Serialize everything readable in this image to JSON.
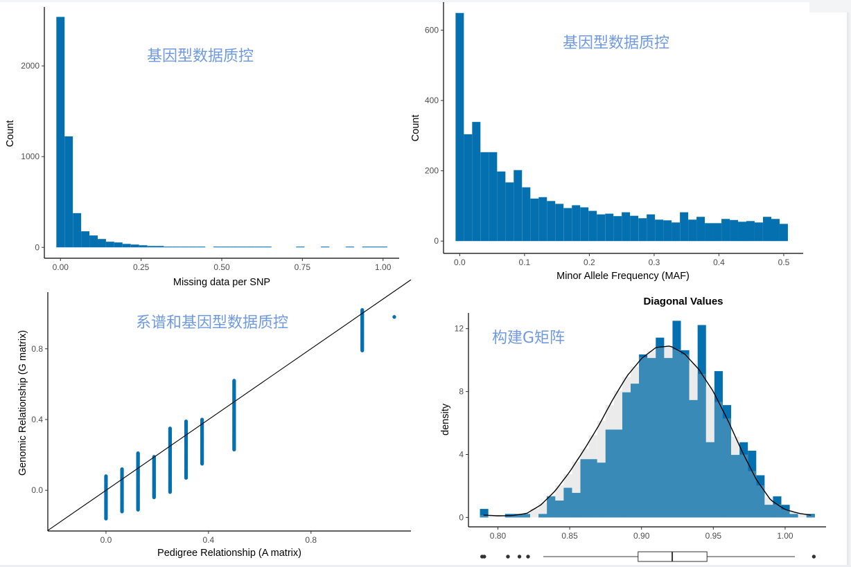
{
  "chart_data": [
    {
      "id": "missing",
      "type": "bar",
      "subtype": "histogram",
      "title": "",
      "annotation": "基因型数据质控",
      "xlabel": "Missing data per SNP",
      "ylabel": "Count",
      "xlim": [
        -0.05,
        1.05
      ],
      "ylim": [
        -120,
        2650
      ],
      "xticks": [
        0.0,
        0.25,
        0.5,
        0.75,
        1.0
      ],
      "xtick_labels": [
        "0.00",
        "0.25",
        "0.50",
        "0.75",
        "1.00"
      ],
      "yticks": [
        0,
        1000,
        2000
      ],
      "ytick_labels": [
        "0",
        "1000",
        "2000"
      ],
      "bin_width": 0.0256,
      "bin_centers": [
        0.0,
        0.0256,
        0.0513,
        0.0769,
        0.1026,
        0.1282,
        0.1538,
        0.1795,
        0.2051,
        0.2308,
        0.2564,
        0.2821,
        0.3077,
        0.3333,
        0.359,
        0.3846,
        0.4103,
        0.4359,
        0.4615,
        0.4872,
        0.5128,
        0.5385,
        0.5641,
        0.5897,
        0.6154,
        0.641,
        0.6667,
        0.6923,
        0.7179,
        0.7436,
        0.7692,
        0.7949,
        0.8205,
        0.8462,
        0.8718,
        0.8974,
        0.9231,
        0.9487,
        0.9744,
        1.0
      ],
      "values": [
        2540,
        1223,
        377,
        177,
        131,
        92,
        62,
        54,
        38,
        31,
        23,
        15,
        15,
        8,
        3,
        8,
        2,
        2,
        0,
        1,
        1,
        1,
        1,
        1,
        1,
        1,
        0,
        0,
        0,
        1,
        0,
        0,
        1,
        0,
        0,
        1,
        0,
        1,
        2,
        1
      ],
      "color": "#0570b0"
    },
    {
      "id": "maf",
      "type": "bar",
      "subtype": "histogram",
      "title": "",
      "annotation": "基因型数据质控",
      "xlabel": "Minor Allele Frequency (MAF)",
      "ylabel": "Count",
      "xlim": [
        -0.025,
        0.53
      ],
      "ylim": [
        -35,
        680
      ],
      "xticks": [
        0.0,
        0.1,
        0.2,
        0.3,
        0.4,
        0.5
      ],
      "xtick_labels": [
        "0.0",
        "0.1",
        "0.2",
        "0.3",
        "0.4",
        "0.5"
      ],
      "yticks": [
        0,
        200,
        400,
        600
      ],
      "ytick_labels": [
        "0",
        "200",
        "400",
        "600"
      ],
      "bin_width": 0.0128,
      "bin_centers": [
        0.0,
        0.0128,
        0.0256,
        0.0385,
        0.0513,
        0.0641,
        0.0769,
        0.0897,
        0.1026,
        0.1154,
        0.1282,
        0.141,
        0.1538,
        0.1667,
        0.1795,
        0.1923,
        0.2051,
        0.2179,
        0.2308,
        0.2436,
        0.2564,
        0.2692,
        0.2821,
        0.2949,
        0.3077,
        0.3205,
        0.3333,
        0.3462,
        0.359,
        0.3718,
        0.3846,
        0.3974,
        0.4103,
        0.4231,
        0.4359,
        0.4487,
        0.4615,
        0.4744,
        0.4872,
        0.5
      ],
      "values": [
        649,
        304,
        339,
        253,
        253,
        198,
        167,
        202,
        153,
        121,
        125,
        114,
        106,
        94,
        102,
        96,
        86,
        76,
        78,
        71,
        82,
        72,
        65,
        76,
        61,
        59,
        53,
        82,
        61,
        69,
        51,
        51,
        63,
        60,
        55,
        57,
        53,
        69,
        63,
        49
      ],
      "color": "#0570b0"
    },
    {
      "id": "relationship",
      "type": "scatter",
      "title": "",
      "annotation": "系谱和基因型数据质控",
      "xlabel": "Pedigree Relationship (A matrix)",
      "ylabel": "Genomic Relationship (G matrix)",
      "xlim": [
        -0.227,
        1.19
      ],
      "ylim": [
        -0.23,
        1.12
      ],
      "xticks": [
        0.0,
        0.4,
        0.8
      ],
      "xtick_labels": [
        "0.0",
        "0.4",
        "0.8"
      ],
      "yticks": [
        0.0,
        0.4,
        0.8
      ],
      "ytick_labels": [
        "0.0",
        "0.4",
        "0.8"
      ],
      "reference_line": "y = x",
      "point_columns": [
        {
          "x": 0.0,
          "ymin": -0.16,
          "ymax": 0.08
        },
        {
          "x": 0.0625,
          "ymin": -0.12,
          "ymax": 0.12
        },
        {
          "x": 0.125,
          "ymin": -0.11,
          "ymax": 0.21
        },
        {
          "x": 0.1875,
          "ymin": -0.04,
          "ymax": 0.19
        },
        {
          "x": 0.25,
          "ymin": -0.01,
          "ymax": 0.35
        },
        {
          "x": 0.3125,
          "ymin": 0.07,
          "ymax": 0.39
        },
        {
          "x": 0.375,
          "ymin": 0.15,
          "ymax": 0.4
        },
        {
          "x": 0.5,
          "ymin": 0.23,
          "ymax": 0.62
        },
        {
          "x": 1.0,
          "ymin": 0.79,
          "ymax": 1.02
        },
        {
          "x": 1.125,
          "ymin": 0.98,
          "ymax": 0.98
        }
      ],
      "color": "#0570b0"
    },
    {
      "id": "diagonal",
      "type": "bar",
      "subtype": "histogram+density+boxplot",
      "title": "Diagonal Values",
      "annotation": "构建G矩阵",
      "xlabel": "",
      "ylabel": "density",
      "xlim": [
        0.7795,
        1.0285
      ],
      "ylim": [
        -0.6,
        13.0
      ],
      "xticks": [
        0.8,
        0.85,
        0.9,
        0.95,
        1.0
      ],
      "xtick_labels": [
        "0.80",
        "0.85",
        "0.90",
        "0.95",
        "1.00"
      ],
      "yticks": [
        0,
        4,
        8,
        12
      ],
      "ytick_labels": [
        "0",
        "4",
        "8",
        "12"
      ],
      "bin_width": 0.00583,
      "bin_start": 0.7875,
      "values": [
        0.54,
        0,
        0,
        0.22,
        0.22,
        0.22,
        0,
        0.22,
        1.34,
        1.07,
        1.88,
        1.56,
        3.7,
        3.7,
        3.48,
        5.58,
        5.58,
        7.95,
        8.5,
        10.36,
        10.13,
        11.43,
        10.13,
        12.5,
        10.63,
        7.46,
        12.23,
        4.78,
        9.3,
        7.14,
        3.97,
        4.78,
        4.24,
        2.68,
        0.8,
        1.34,
        0.8,
        0.22,
        0,
        0.22
      ],
      "density_curve": {
        "x": [
          0.79,
          0.8,
          0.81,
          0.82,
          0.83,
          0.84,
          0.85,
          0.86,
          0.87,
          0.88,
          0.89,
          0.9,
          0.91,
          0.92,
          0.93,
          0.94,
          0.95,
          0.96,
          0.97,
          0.98,
          0.99,
          1.0,
          1.01,
          1.018
        ],
        "y": [
          0.15,
          0.1,
          0.12,
          0.25,
          0.8,
          1.7,
          2.9,
          4.3,
          5.8,
          7.5,
          9.0,
          10.1,
          10.8,
          10.9,
          10.4,
          9.4,
          8.0,
          6.2,
          4.2,
          2.4,
          1.1,
          0.5,
          0.25,
          0.15
        ]
      },
      "boxplot": {
        "whisker_low": 0.8316,
        "q1": 0.8976,
        "median": 0.9214,
        "q3": 0.9456,
        "whisker_high": 1.0068,
        "outliers": [
          0.789,
          0.7905,
          0.807,
          0.815,
          0.821,
          1.02
        ]
      },
      "bar_color": "#0570b0",
      "density_fill": "#3a8ab8",
      "density_gap_color": "#ebebeb"
    }
  ]
}
